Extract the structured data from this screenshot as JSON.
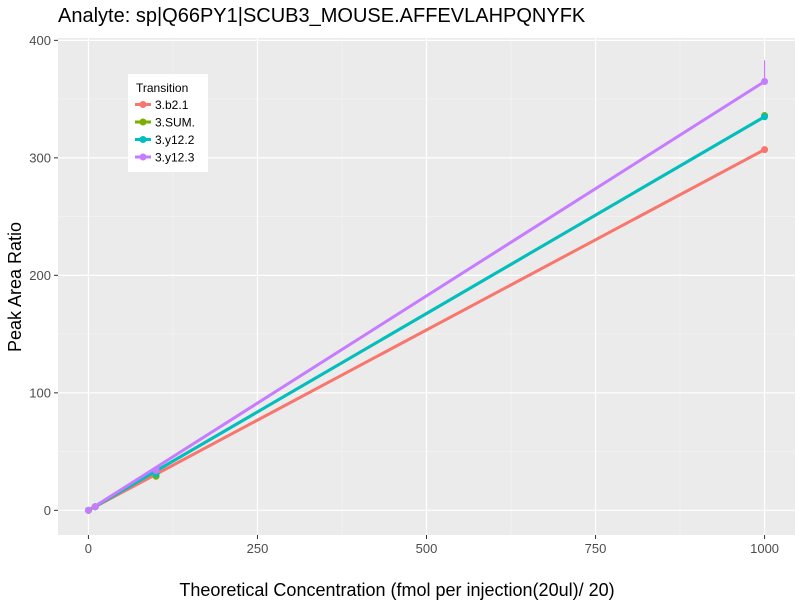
{
  "chart_data": {
    "type": "line",
    "title": "Analyte: sp|Q66PY1|SCUB3_MOUSE.AFFEVLAHPQNYFK",
    "xlabel": "Theoretical Concentration (fmol per injection(20ul)/ 20)",
    "ylabel": "Peak Area Ratio",
    "xlim": [
      -45,
      1045
    ],
    "ylim": [
      -21,
      402
    ],
    "x_ticks": [
      0,
      250,
      500,
      750,
      1000
    ],
    "x_tick_labels": [
      "0",
      "250",
      "500",
      "750",
      "1000"
    ],
    "y_ticks": [
      0,
      100,
      200,
      300,
      400
    ],
    "y_tick_labels": [
      "0",
      "100",
      "200",
      "300",
      "400"
    ],
    "grid": true,
    "legend": {
      "title": "Transition",
      "placement": "top-left"
    },
    "series": [
      {
        "name": "3.b2.1",
        "color": "#F8766D",
        "points": [
          {
            "x": 0,
            "y": 0
          },
          {
            "x": 10,
            "y": 3
          },
          {
            "x": 100,
            "y": 30
          },
          {
            "x": 1000,
            "y": 307
          }
        ],
        "fit_line": {
          "x": [
            0,
            1000
          ],
          "y": [
            0,
            307
          ]
        },
        "error_bar": null
      },
      {
        "name": "3.SUM.",
        "color": "#7CAE00",
        "points": [
          {
            "x": 0,
            "y": 0
          },
          {
            "x": 10,
            "y": 3
          },
          {
            "x": 100,
            "y": 29
          },
          {
            "x": 1000,
            "y": 336
          }
        ],
        "fit_line": {
          "x": [
            0,
            1000
          ],
          "y": [
            0,
            335
          ]
        },
        "error_bar": null
      },
      {
        "name": "3.y12.2",
        "color": "#00BFC4",
        "points": [
          {
            "x": 0,
            "y": 0
          },
          {
            "x": 10,
            "y": 3
          },
          {
            "x": 100,
            "y": 31
          },
          {
            "x": 1000,
            "y": 335
          }
        ],
        "fit_line": {
          "x": [
            0,
            1000
          ],
          "y": [
            0,
            335
          ]
        },
        "error_bar": null
      },
      {
        "name": "3.y12.3",
        "color": "#C77CFF",
        "points": [
          {
            "x": 0,
            "y": 0
          },
          {
            "x": 10,
            "y": 3
          },
          {
            "x": 100,
            "y": 34
          },
          {
            "x": 1000,
            "y": 365
          }
        ],
        "fit_line": {
          "x": [
            0,
            1000
          ],
          "y": [
            0,
            365
          ]
        },
        "error_bar": {
          "x": 1000,
          "low": 365,
          "high": 383
        }
      }
    ]
  }
}
